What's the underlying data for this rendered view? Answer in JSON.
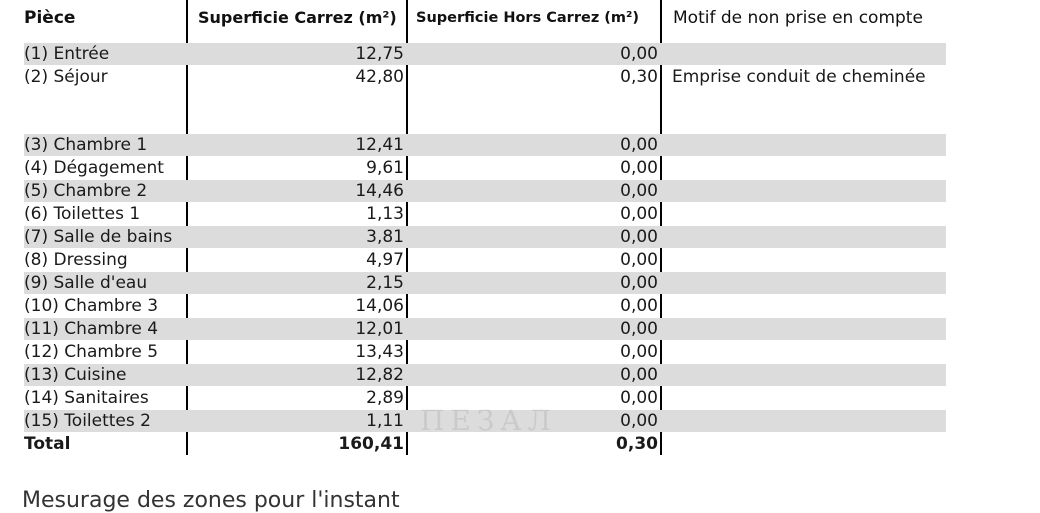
{
  "headers": {
    "piece": "Pièce",
    "carrez": "Superficie Carrez (m²)",
    "hors_carrez": "Superficie Hors Carrez (m²)",
    "motif": "Motif de non prise en compte"
  },
  "rows": [
    {
      "name": "(1) Entrée",
      "carrez": "12,75",
      "hors": "0,00",
      "motif": ""
    },
    {
      "name": "(2) Séjour",
      "carrez": "42,80",
      "hors": "0,30",
      "motif": "Emprise conduit de cheminée"
    },
    {
      "name": "(3) Chambre 1",
      "carrez": "12,41",
      "hors": "0,00",
      "motif": ""
    },
    {
      "name": "(4) Dégagement",
      "carrez": "9,61",
      "hors": "0,00",
      "motif": ""
    },
    {
      "name": "(5) Chambre 2",
      "carrez": "14,46",
      "hors": "0,00",
      "motif": ""
    },
    {
      "name": "(6) Toilettes 1",
      "carrez": "1,13",
      "hors": "0,00",
      "motif": ""
    },
    {
      "name": "(7) Salle de bains",
      "carrez": "3,81",
      "hors": "0,00",
      "motif": ""
    },
    {
      "name": "(8) Dressing",
      "carrez": "4,97",
      "hors": "0,00",
      "motif": ""
    },
    {
      "name": "(9) Salle d'eau",
      "carrez": "2,15",
      "hors": "0,00",
      "motif": ""
    },
    {
      "name": "(10) Chambre 3",
      "carrez": "14,06",
      "hors": "0,00",
      "motif": ""
    },
    {
      "name": "(11) Chambre 4",
      "carrez": "12,01",
      "hors": "0,00",
      "motif": ""
    },
    {
      "name": "(12) Chambre 5",
      "carrez": "13,43",
      "hors": "0,00",
      "motif": ""
    },
    {
      "name": "(13) Cuisine",
      "carrez": "12,82",
      "hors": "0,00",
      "motif": ""
    },
    {
      "name": "(14) Sanitaires",
      "carrez": "2,89",
      "hors": "0,00",
      "motif": ""
    },
    {
      "name": "(15) Toilettes 2",
      "carrez": "1,11",
      "hors": "0,00",
      "motif": ""
    }
  ],
  "total": {
    "label": "Total",
    "carrez": "160,41",
    "hors": "0,30"
  },
  "footer": {
    "partial_text": "Mesurage des zones pour l'instant"
  },
  "colors": {
    "row_shade": "#dcdcdc",
    "rule": "#000000"
  }
}
